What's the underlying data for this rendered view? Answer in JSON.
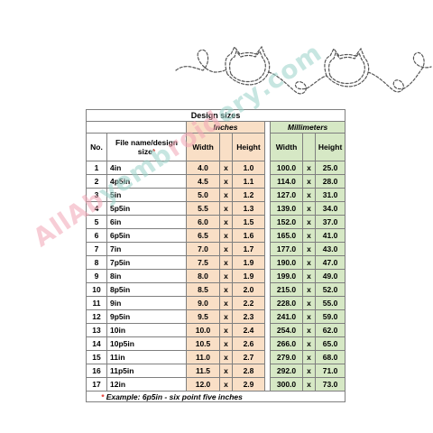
{
  "design": {
    "title": "Design sizes",
    "inches_label": "Inches",
    "millimeters_label": "Millimeters",
    "no_label": "No.",
    "file_label": "File name/design size",
    "width_label": "Width",
    "height_label": "Height",
    "separator": "x",
    "note_star": "*",
    "note_text": "Example: 6p5in - six point five inches",
    "rows": [
      {
        "no": "1",
        "name": "4in",
        "w_in": "4.0",
        "h_in": "1.0",
        "w_mm": "100.0",
        "h_mm": "25.0"
      },
      {
        "no": "2",
        "name": "4p5in",
        "w_in": "4.5",
        "h_in": "1.1",
        "w_mm": "114.0",
        "h_mm": "28.0"
      },
      {
        "no": "3",
        "name": "5in",
        "w_in": "5.0",
        "h_in": "1.2",
        "w_mm": "127.0",
        "h_mm": "31.0"
      },
      {
        "no": "4",
        "name": "5p5in",
        "w_in": "5.5",
        "h_in": "1.3",
        "w_mm": "139.0",
        "h_mm": "34.0"
      },
      {
        "no": "5",
        "name": "6in",
        "w_in": "6.0",
        "h_in": "1.5",
        "w_mm": "152.0",
        "h_mm": "37.0"
      },
      {
        "no": "6",
        "name": "6p5in",
        "w_in": "6.5",
        "h_in": "1.6",
        "w_mm": "165.0",
        "h_mm": "41.0"
      },
      {
        "no": "7",
        "name": "7in",
        "w_in": "7.0",
        "h_in": "1.7",
        "w_mm": "177.0",
        "h_mm": "43.0"
      },
      {
        "no": "8",
        "name": "7p5in",
        "w_in": "7.5",
        "h_in": "1.9",
        "w_mm": "190.0",
        "h_mm": "47.0"
      },
      {
        "no": "9",
        "name": "8in",
        "w_in": "8.0",
        "h_in": "1.9",
        "w_mm": "199.0",
        "h_mm": "49.0"
      },
      {
        "no": "10",
        "name": "8p5in",
        "w_in": "8.5",
        "h_in": "2.0",
        "w_mm": "215.0",
        "h_mm": "52.0"
      },
      {
        "no": "11",
        "name": "9in",
        "w_in": "9.0",
        "h_in": "2.2",
        "w_mm": "228.0",
        "h_mm": "55.0"
      },
      {
        "no": "12",
        "name": "9p5in",
        "w_in": "9.5",
        "h_in": "2.3",
        "w_mm": "241.0",
        "h_mm": "59.0"
      },
      {
        "no": "13",
        "name": "10in",
        "w_in": "10.0",
        "h_in": "2.4",
        "w_mm": "254.0",
        "h_mm": "62.0"
      },
      {
        "no": "14",
        "name": "10p5in",
        "w_in": "10.5",
        "h_in": "2.6",
        "w_mm": "266.0",
        "h_mm": "65.0"
      },
      {
        "no": "15",
        "name": "11in",
        "w_in": "11.0",
        "h_in": "2.7",
        "w_mm": "279.0",
        "h_mm": "68.0"
      },
      {
        "no": "16",
        "name": "11p5in",
        "w_in": "11.5",
        "h_in": "2.8",
        "w_mm": "292.0",
        "h_mm": "71.0"
      },
      {
        "no": "17",
        "name": "12in",
        "w_in": "12.0",
        "h_in": "2.9",
        "w_mm": "300.0",
        "h_mm": "73.0"
      }
    ]
  },
  "watermark": {
    "parts": [
      {
        "text": "All",
        "color": "#f2a6b5"
      },
      {
        "text": "Ab",
        "color": "#f2a6b5"
      },
      {
        "text": "ye",
        "color": "#9bd3c9"
      },
      {
        "text": "mb",
        "color": "#9bd3c9"
      },
      {
        "text": "roid",
        "color": "#f2a6b5"
      },
      {
        "text": "ery",
        "color": "#9bd3c9"
      },
      {
        "text": ".com",
        "color": "#9bd3c9"
      }
    ]
  },
  "colors": {
    "inches_fill": "#f9dfc6",
    "millimeters_fill": "#d6e8c5",
    "border": "#7f7f7f"
  }
}
